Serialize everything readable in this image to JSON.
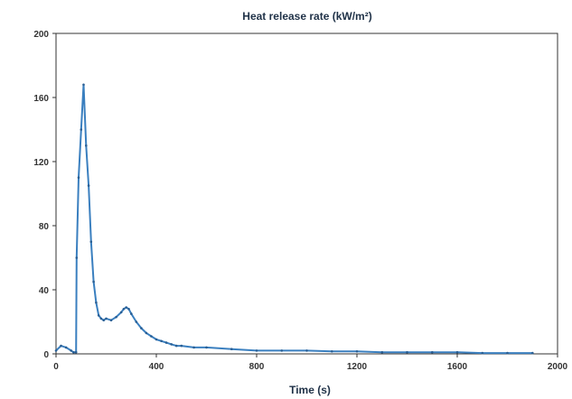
{
  "chart_data": {
    "type": "line",
    "title": "Heat release rate (kW/m²)",
    "xlabel": "Time (s)",
    "ylabel": "",
    "xlim": [
      0,
      2000
    ],
    "ylim": [
      0,
      200
    ],
    "x_ticks": [
      "0",
      "400",
      "800",
      "1200",
      "1600",
      "2000"
    ],
    "y_ticks": [
      "0",
      "40",
      "80",
      "120",
      "160",
      "200"
    ],
    "grid": false,
    "legend": "none",
    "series": [
      {
        "color": "#3a7fbf",
        "x": [
          0,
          20,
          40,
          60,
          70,
          80,
          82,
          90,
          100,
          110,
          120,
          130,
          140,
          150,
          160,
          170,
          180,
          190,
          200,
          220,
          240,
          260,
          270,
          280,
          290,
          300,
          320,
          340,
          360,
          380,
          400,
          420,
          440,
          460,
          480,
          500,
          550,
          600,
          700,
          800,
          900,
          1000,
          1100,
          1200,
          1300,
          1400,
          1500,
          1600,
          1700,
          1800,
          1900
        ],
        "y": [
          2,
          5,
          4,
          2,
          1,
          1,
          60,
          110,
          140,
          168,
          130,
          105,
          70,
          45,
          32,
          24,
          22,
          21,
          22,
          21,
          23,
          26,
          28,
          29,
          28,
          25,
          20,
          16,
          13,
          11,
          9,
          8,
          7,
          6,
          5,
          5,
          4,
          4,
          3,
          2,
          2,
          2,
          1.5,
          1.5,
          1,
          1,
          1,
          1,
          0.5,
          0.5,
          0.5
        ]
      }
    ]
  }
}
